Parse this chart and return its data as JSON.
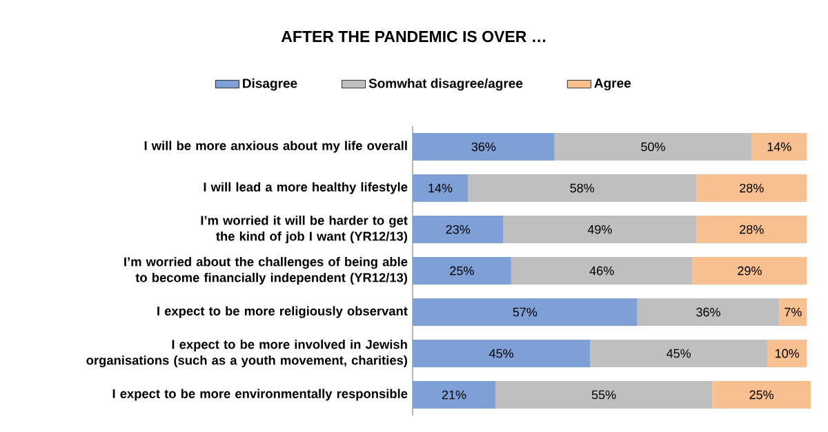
{
  "chart_data": {
    "type": "bar",
    "orientation": "horizontal",
    "stacked": true,
    "title": "AFTER THE PANDEMIC IS OVER  …",
    "categories": [
      "I will be more anxious about my life overall",
      "I will lead a more healthy lifestyle",
      "I’m worried it will be harder to get the kind of job I want (YR12/13)",
      "I’m worried about the challenges of being able to become financially independent (YR12/13)",
      "I expect to be more religiously observant",
      "I expect to be more involved in Jewish organisations (such as a youth movement, charities)",
      "I expect to be more environmentally responsible"
    ],
    "series": [
      {
        "name": "Disagree",
        "color": "#7f9fd7",
        "values": [
          36,
          14,
          23,
          25,
          57,
          45,
          21
        ],
        "value_labels": [
          "36%",
          "14%",
          "23%",
          "25%",
          "57%",
          "45%",
          "21%"
        ]
      },
      {
        "name": "Somwhat disagree/agree",
        "color": "#bfbfbf",
        "values": [
          50,
          58,
          49,
          46,
          36,
          45,
          55
        ],
        "value_labels": [
          "50%",
          "58%",
          "49%",
          "46%",
          "36%",
          "45%",
          "55%"
        ]
      },
      {
        "name": "Agree",
        "color": "#f8c08f",
        "values": [
          14,
          28,
          28,
          29,
          7,
          10,
          25
        ],
        "value_labels": [
          "14%",
          "28%",
          "28%",
          "29%",
          "7%",
          "10%",
          "25%"
        ]
      }
    ],
    "xlim": [
      0,
      101
    ],
    "legend": "top",
    "tick_labels": "y"
  }
}
